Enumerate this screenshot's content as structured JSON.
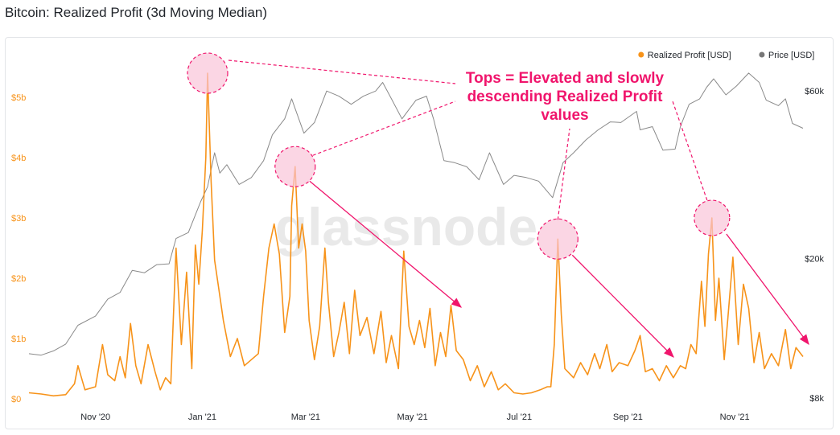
{
  "title": "Bitcoin: Realized Profit (3d Moving Median)",
  "watermark": "glassnode",
  "colors": {
    "realized_profit": "#f7931a",
    "price": "#8a8a8a",
    "annotation": "#f0156c",
    "annotation_fill": "#f9c4d8",
    "axis_left_text": "#f7931a",
    "axis_text": "#1f2329"
  },
  "legend": [
    {
      "label": "Realized Profit [USD]",
      "color": "#f7931a"
    },
    {
      "label": "Price [USD]",
      "color": "#777777"
    }
  ],
  "annotation_text": [
    "Tops = Elevated and slowly",
    "descending Realized Profit",
    "values"
  ],
  "chart_data": {
    "type": "line",
    "title": "Bitcoin: Realized Profit (3d Moving Median)",
    "x_start": "2020-09-24",
    "x_end": "2021-12-10",
    "xticks": [
      {
        "label": "Nov '20",
        "date": "2020-11-01"
      },
      {
        "label": "Jan '21",
        "date": "2021-01-01"
      },
      {
        "label": "Mar '21",
        "date": "2021-03-01"
      },
      {
        "label": "May '21",
        "date": "2021-05-01"
      },
      {
        "label": "Jul '21",
        "date": "2021-07-01"
      },
      {
        "label": "Sep '21",
        "date": "2021-09-01"
      },
      {
        "label": "Nov '21",
        "date": "2021-11-01"
      }
    ],
    "y_left": {
      "ticks": [
        {
          "label": "$0",
          "value": 0
        },
        {
          "label": "$1b",
          "value": 1
        },
        {
          "label": "$2b",
          "value": 2
        },
        {
          "label": "$3b",
          "value": 3
        },
        {
          "label": "$4b",
          "value": 4
        },
        {
          "label": "$5b",
          "value": 5
        }
      ],
      "ylim": [
        0,
        5.6
      ]
    },
    "y_right": {
      "scale": "log",
      "ticks": [
        {
          "label": "$8k",
          "value": 8000
        },
        {
          "label": "$20k",
          "value": 20000
        },
        {
          "label": "$60k",
          "value": 60000
        }
      ],
      "ylim": [
        8000,
        70000
      ]
    },
    "grid": false,
    "legend_position": "top-right",
    "series": [
      {
        "name": "Realized Profit [USD]",
        "axis": "left",
        "unit": "billion USD",
        "points": [
          [
            "2020-09-24",
            0.1
          ],
          [
            "2020-10-01",
            0.08
          ],
          [
            "2020-10-08",
            0.05
          ],
          [
            "2020-10-15",
            0.07
          ],
          [
            "2020-10-20",
            0.25
          ],
          [
            "2020-10-22",
            0.55
          ],
          [
            "2020-10-26",
            0.15
          ],
          [
            "2020-11-01",
            0.2
          ],
          [
            "2020-11-05",
            0.9
          ],
          [
            "2020-11-08",
            0.4
          ],
          [
            "2020-11-12",
            0.3
          ],
          [
            "2020-11-15",
            0.7
          ],
          [
            "2020-11-18",
            0.35
          ],
          [
            "2020-11-21",
            1.25
          ],
          [
            "2020-11-24",
            0.55
          ],
          [
            "2020-11-27",
            0.25
          ],
          [
            "2020-12-01",
            0.9
          ],
          [
            "2020-12-05",
            0.45
          ],
          [
            "2020-12-08",
            0.15
          ],
          [
            "2020-12-11",
            0.35
          ],
          [
            "2020-12-14",
            0.25
          ],
          [
            "2020-12-17",
            2.5
          ],
          [
            "2020-12-20",
            0.9
          ],
          [
            "2020-12-23",
            2.1
          ],
          [
            "2020-12-26",
            0.5
          ],
          [
            "2020-12-28",
            2.55
          ],
          [
            "2020-12-30",
            1.9
          ],
          [
            "2021-01-01",
            2.8
          ],
          [
            "2021-01-03",
            4.0
          ],
          [
            "2021-01-04",
            5.4
          ],
          [
            "2021-01-06",
            3.6
          ],
          [
            "2021-01-08",
            2.3
          ],
          [
            "2021-01-10",
            1.9
          ],
          [
            "2021-01-13",
            1.3
          ],
          [
            "2021-01-17",
            0.7
          ],
          [
            "2021-01-21",
            1.0
          ],
          [
            "2021-01-25",
            0.55
          ],
          [
            "2021-01-29",
            0.65
          ],
          [
            "2021-02-02",
            0.75
          ],
          [
            "2021-02-05",
            1.7
          ],
          [
            "2021-02-08",
            2.5
          ],
          [
            "2021-02-11",
            2.9
          ],
          [
            "2021-02-14",
            2.4
          ],
          [
            "2021-02-17",
            1.1
          ],
          [
            "2021-02-20",
            1.7
          ],
          [
            "2021-02-21",
            3.2
          ],
          [
            "2021-02-23",
            3.85
          ],
          [
            "2021-02-25",
            2.5
          ],
          [
            "2021-02-27",
            2.9
          ],
          [
            "2021-03-01",
            2.45
          ],
          [
            "2021-03-03",
            1.3
          ],
          [
            "2021-03-06",
            0.65
          ],
          [
            "2021-03-09",
            1.2
          ],
          [
            "2021-03-12",
            2.5
          ],
          [
            "2021-03-14",
            1.6
          ],
          [
            "2021-03-17",
            0.7
          ],
          [
            "2021-03-20",
            1.1
          ],
          [
            "2021-03-23",
            1.6
          ],
          [
            "2021-03-26",
            0.75
          ],
          [
            "2021-03-29",
            1.8
          ],
          [
            "2021-04-01",
            1.05
          ],
          [
            "2021-04-05",
            1.35
          ],
          [
            "2021-04-09",
            0.75
          ],
          [
            "2021-04-13",
            1.45
          ],
          [
            "2021-04-16",
            0.6
          ],
          [
            "2021-04-19",
            1.05
          ],
          [
            "2021-04-23",
            0.5
          ],
          [
            "2021-04-26",
            2.45
          ],
          [
            "2021-04-29",
            1.2
          ],
          [
            "2021-05-02",
            0.9
          ],
          [
            "2021-05-05",
            1.3
          ],
          [
            "2021-05-08",
            0.85
          ],
          [
            "2021-05-11",
            1.5
          ],
          [
            "2021-05-14",
            0.55
          ],
          [
            "2021-05-17",
            1.1
          ],
          [
            "2021-05-20",
            0.7
          ],
          [
            "2021-05-23",
            1.55
          ],
          [
            "2021-05-26",
            0.8
          ],
          [
            "2021-05-30",
            0.65
          ],
          [
            "2021-06-03",
            0.3
          ],
          [
            "2021-06-07",
            0.55
          ],
          [
            "2021-06-11",
            0.2
          ],
          [
            "2021-06-15",
            0.45
          ],
          [
            "2021-06-19",
            0.15
          ],
          [
            "2021-06-23",
            0.25
          ],
          [
            "2021-06-28",
            0.1
          ],
          [
            "2021-07-03",
            0.08
          ],
          [
            "2021-07-08",
            0.1
          ],
          [
            "2021-07-13",
            0.15
          ],
          [
            "2021-07-17",
            0.2
          ],
          [
            "2021-07-19",
            0.2
          ],
          [
            "2021-07-21",
            0.9
          ],
          [
            "2021-07-23",
            2.65
          ],
          [
            "2021-07-25",
            1.4
          ],
          [
            "2021-07-27",
            0.5
          ],
          [
            "2021-08-01",
            0.35
          ],
          [
            "2021-08-05",
            0.6
          ],
          [
            "2021-08-09",
            0.4
          ],
          [
            "2021-08-13",
            0.75
          ],
          [
            "2021-08-16",
            0.5
          ],
          [
            "2021-08-20",
            0.9
          ],
          [
            "2021-08-23",
            0.45
          ],
          [
            "2021-08-27",
            0.6
          ],
          [
            "2021-09-01",
            0.55
          ],
          [
            "2021-09-05",
            0.8
          ],
          [
            "2021-09-08",
            1.05
          ],
          [
            "2021-09-11",
            0.45
          ],
          [
            "2021-09-15",
            0.5
          ],
          [
            "2021-09-19",
            0.3
          ],
          [
            "2021-09-23",
            0.55
          ],
          [
            "2021-09-27",
            0.35
          ],
          [
            "2021-10-01",
            0.55
          ],
          [
            "2021-10-04",
            0.5
          ],
          [
            "2021-10-07",
            0.9
          ],
          [
            "2021-10-10",
            0.75
          ],
          [
            "2021-10-13",
            1.95
          ],
          [
            "2021-10-15",
            1.2
          ],
          [
            "2021-10-17",
            2.4
          ],
          [
            "2021-10-19",
            3.0
          ],
          [
            "2021-10-21",
            1.3
          ],
          [
            "2021-10-23",
            2.0
          ],
          [
            "2021-10-26",
            0.65
          ],
          [
            "2021-10-28",
            1.3
          ],
          [
            "2021-10-31",
            2.35
          ],
          [
            "2021-11-03",
            0.9
          ],
          [
            "2021-11-06",
            1.9
          ],
          [
            "2021-11-09",
            1.5
          ],
          [
            "2021-11-12",
            0.6
          ],
          [
            "2021-11-15",
            1.1
          ],
          [
            "2021-11-18",
            0.5
          ],
          [
            "2021-11-22",
            0.75
          ],
          [
            "2021-11-26",
            0.55
          ],
          [
            "2021-11-30",
            1.15
          ],
          [
            "2021-12-03",
            0.5
          ],
          [
            "2021-12-06",
            0.85
          ],
          [
            "2021-12-10",
            0.7
          ]
        ]
      },
      {
        "name": "Price [USD]",
        "axis": "right",
        "unit": "USD",
        "points": [
          [
            "2020-09-24",
            10700
          ],
          [
            "2020-10-01",
            10600
          ],
          [
            "2020-10-08",
            10900
          ],
          [
            "2020-10-15",
            11400
          ],
          [
            "2020-10-22",
            12900
          ],
          [
            "2020-11-01",
            13700
          ],
          [
            "2020-11-08",
            15300
          ],
          [
            "2020-11-15",
            16000
          ],
          [
            "2020-11-22",
            18500
          ],
          [
            "2020-11-29",
            18200
          ],
          [
            "2020-12-06",
            19200
          ],
          [
            "2020-12-13",
            19300
          ],
          [
            "2020-12-17",
            22800
          ],
          [
            "2020-12-24",
            23700
          ],
          [
            "2020-12-31",
            29000
          ],
          [
            "2021-01-04",
            32000
          ],
          [
            "2021-01-08",
            40000
          ],
          [
            "2021-01-11",
            35000
          ],
          [
            "2021-01-15",
            37000
          ],
          [
            "2021-01-22",
            32500
          ],
          [
            "2021-01-29",
            34000
          ],
          [
            "2021-02-05",
            38000
          ],
          [
            "2021-02-10",
            45000
          ],
          [
            "2021-02-17",
            50000
          ],
          [
            "2021-02-21",
            57000
          ],
          [
            "2021-02-28",
            45500
          ],
          [
            "2021-03-06",
            48800
          ],
          [
            "2021-03-13",
            60000
          ],
          [
            "2021-03-20",
            58000
          ],
          [
            "2021-03-27",
            55000
          ],
          [
            "2021-04-03",
            58000
          ],
          [
            "2021-04-10",
            60000
          ],
          [
            "2021-04-14",
            63500
          ],
          [
            "2021-04-19",
            57000
          ],
          [
            "2021-04-25",
            50000
          ],
          [
            "2021-05-03",
            56500
          ],
          [
            "2021-05-09",
            58000
          ],
          [
            "2021-05-13",
            50000
          ],
          [
            "2021-05-19",
            38000
          ],
          [
            "2021-05-25",
            37500
          ],
          [
            "2021-06-01",
            36500
          ],
          [
            "2021-06-08",
            33500
          ],
          [
            "2021-06-14",
            40000
          ],
          [
            "2021-06-22",
            32500
          ],
          [
            "2021-06-28",
            34500
          ],
          [
            "2021-07-05",
            34000
          ],
          [
            "2021-07-12",
            33200
          ],
          [
            "2021-07-20",
            29800
          ],
          [
            "2021-07-26",
            37500
          ],
          [
            "2021-08-01",
            40000
          ],
          [
            "2021-08-08",
            43500
          ],
          [
            "2021-08-15",
            46500
          ],
          [
            "2021-08-22",
            49000
          ],
          [
            "2021-08-28",
            48800
          ],
          [
            "2021-09-06",
            52500
          ],
          [
            "2021-09-08",
            46500
          ],
          [
            "2021-09-15",
            47500
          ],
          [
            "2021-09-21",
            40700
          ],
          [
            "2021-09-28",
            41000
          ],
          [
            "2021-10-01",
            47500
          ],
          [
            "2021-10-06",
            55000
          ],
          [
            "2021-10-12",
            57000
          ],
          [
            "2021-10-16",
            61500
          ],
          [
            "2021-10-20",
            65000
          ],
          [
            "2021-10-27",
            58500
          ],
          [
            "2021-11-02",
            62000
          ],
          [
            "2021-11-09",
            67500
          ],
          [
            "2021-11-15",
            63500
          ],
          [
            "2021-11-19",
            56500
          ],
          [
            "2021-11-26",
            54500
          ],
          [
            "2021-11-30",
            57000
          ],
          [
            "2021-12-04",
            48500
          ],
          [
            "2021-12-10",
            47000
          ]
        ]
      }
    ],
    "highlighted_peaks": [
      {
        "date": "2021-01-04",
        "value": 5.4
      },
      {
        "date": "2021-02-23",
        "value": 3.85
      },
      {
        "date": "2021-07-23",
        "value": 2.65
      },
      {
        "date": "2021-10-19",
        "value": 3.0
      }
    ]
  }
}
